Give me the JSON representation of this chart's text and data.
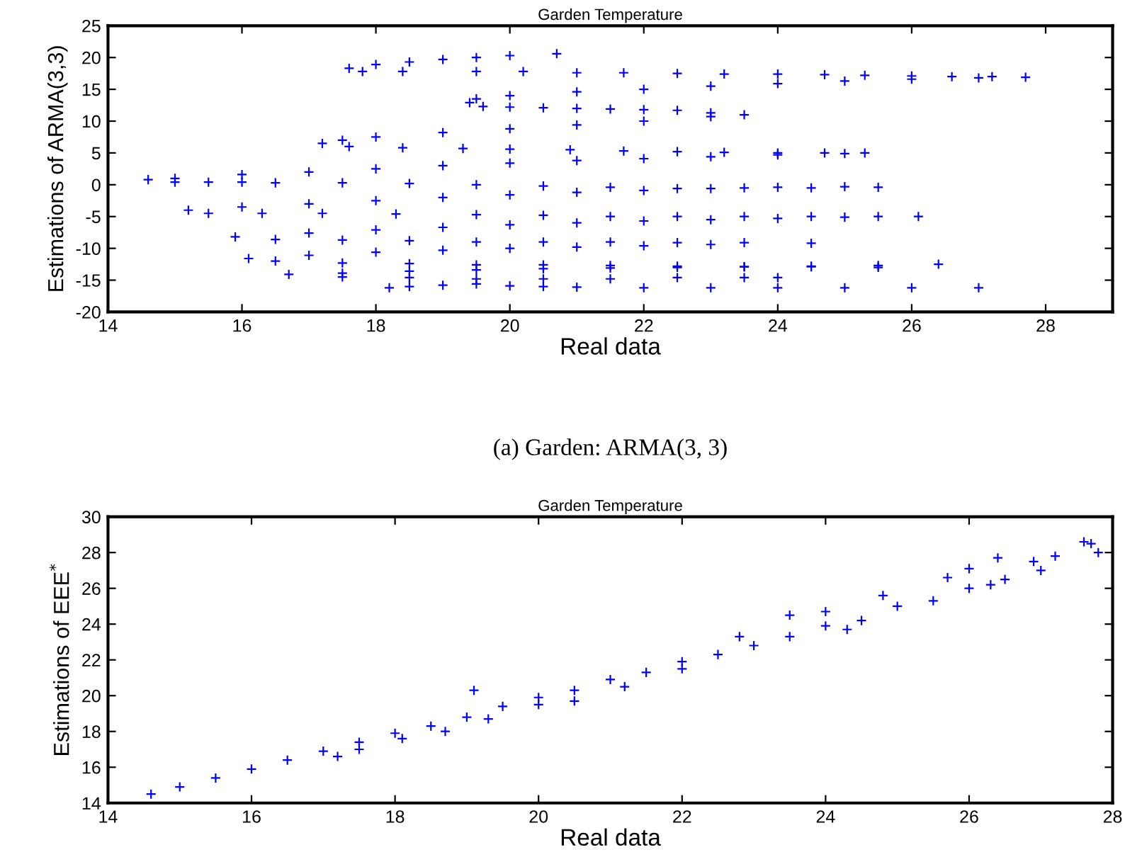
{
  "chart_data": [
    {
      "type": "scatter",
      "title": "Garden Temperature",
      "xlabel": "Real data",
      "ylabel": "Estimations of ARMA(3,3)",
      "annotations": [
        "(a) Garden: ARMA(3, 3)"
      ],
      "marker": "cross",
      "grid": false,
      "xlim": [
        14,
        29
      ],
      "xticks": [
        14,
        16,
        18,
        20,
        22,
        24,
        26,
        28
      ],
      "ylim": [
        -20,
        25
      ],
      "yticks": [
        -20,
        -15,
        -10,
        -5,
        0,
        5,
        10,
        15,
        20,
        25
      ],
      "series": [
        {
          "color": "#0000ff",
          "x": [
            17.6,
            18,
            18.5,
            19,
            19.5,
            20,
            20.7,
            17.8,
            18.4,
            19.5,
            20.2,
            21,
            21.7,
            22.5,
            23.2,
            24,
            24.7,
            25.3,
            26,
            26.6,
            27.2,
            27.7,
            19.4,
            19.5,
            20,
            21,
            22,
            23,
            24,
            25,
            26,
            27,
            19.6,
            20,
            20.5,
            21,
            21.5,
            22,
            22.5,
            23,
            23.5,
            17.2,
            17.5,
            18,
            19,
            20,
            21,
            22,
            23,
            17.6,
            18.4,
            19.3,
            20,
            20.9,
            21.7,
            22.5,
            23.2,
            24,
            24.7,
            25.3,
            14.6,
            15,
            16,
            17,
            18,
            19,
            20,
            21,
            22,
            23,
            24,
            25,
            15,
            15.5,
            16,
            16.5,
            17.5,
            18.5,
            19.5,
            20.5,
            21.5,
            22.5,
            23.5,
            24.5,
            25.5,
            15.2,
            16,
            17,
            18,
            19,
            20,
            21,
            22,
            23,
            24,
            25,
            15.5,
            16.3,
            17.2,
            18.3,
            19.5,
            20.5,
            21.5,
            22.5,
            23.5,
            24.5,
            25.5,
            26.1,
            15.9,
            17,
            18,
            19,
            20,
            21,
            22,
            23,
            24,
            25,
            16.5,
            17.5,
            18.5,
            19.5,
            20.5,
            21.5,
            22.5,
            23.5,
            24.5,
            16.1,
            17,
            18,
            19,
            20,
            21,
            22,
            23,
            16.5,
            17.5,
            18.5,
            19.5,
            20.5,
            21.5,
            22.5,
            23.5,
            24.5,
            25.5,
            26.4,
            16.7,
            17.5,
            18.5,
            19.5,
            20.5,
            21.5,
            22.5,
            23.5,
            24.5,
            25.5,
            17.5,
            18.5,
            19.5,
            20.5,
            21.5,
            22.5,
            23.5,
            24,
            18.2,
            18.5,
            19,
            19.5,
            20,
            20.5,
            21,
            22,
            23,
            24,
            25,
            26,
            27
          ],
          "values": [
            18.3,
            18.9,
            19.3,
            19.7,
            20,
            20.3,
            20.6,
            17.8,
            17.8,
            17.8,
            17.8,
            17.6,
            17.6,
            17.5,
            17.4,
            17.4,
            17.3,
            17.2,
            17.1,
            17,
            17,
            16.9,
            12.9,
            13.5,
            14,
            14.6,
            15,
            15.5,
            15.9,
            16.3,
            16.6,
            16.8,
            12.3,
            12.2,
            12.1,
            12,
            11.9,
            11.8,
            11.7,
            11.3,
            11,
            6.5,
            7,
            7.5,
            8.2,
            8.8,
            9.4,
            10,
            10.7,
            6,
            5.8,
            5.7,
            5.6,
            5.5,
            5.3,
            5.2,
            5.1,
            5,
            5,
            5,
            0.8,
            1,
            1.6,
            2,
            2.5,
            3,
            3.4,
            3.8,
            4.1,
            4.4,
            4.7,
            4.9,
            0.4,
            0.4,
            0.4,
            0.3,
            0.3,
            0.2,
            0,
            -0.2,
            -0.4,
            -0.6,
            -0.5,
            -0.5,
            -0.4,
            -4,
            -3.5,
            -3,
            -2.5,
            -2,
            -1.6,
            -1.2,
            -0.9,
            -0.6,
            -0.4,
            -0.3,
            -4.5,
            -4.5,
            -4.5,
            -4.6,
            -4.7,
            -4.8,
            -5,
            -5,
            -5,
            -5,
            -5,
            -5,
            -8.2,
            -7.6,
            -7.1,
            -6.7,
            -6.3,
            -6,
            -5.7,
            -5.5,
            -5.3,
            -5.1,
            -8.6,
            -8.7,
            -8.8,
            -9,
            -9,
            -9,
            -9.1,
            -9.1,
            -9.2,
            -11.6,
            -11.1,
            -10.6,
            -10.3,
            -10,
            -9.8,
            -9.6,
            -9.4,
            -12,
            -12.3,
            -12.4,
            -12.6,
            -12.6,
            -12.7,
            -12.8,
            -12.9,
            -12.9,
            -13,
            -12.5,
            -14.1,
            -13.9,
            -13.6,
            -13.4,
            -13.2,
            -13.1,
            -13,
            -12.9,
            -12.8,
            -12.7,
            -14.5,
            -14.6,
            -14.8,
            -14.8,
            -14.8,
            -14.6,
            -14.6,
            -14.6,
            -16.2,
            -16,
            -15.8,
            -15.6,
            -15.9,
            -16,
            -16.1,
            -16.2,
            -16.2,
            -16.2,
            -16.2,
            -16.2,
            -16.2
          ]
        }
      ]
    },
    {
      "type": "scatter",
      "title": "Garden Temperature",
      "xlabel": "Real data",
      "ylabel": "Estimations of EEE$^{*}$",
      "marker": "cross",
      "grid": false,
      "xlim": [
        14,
        28
      ],
      "xticks": [
        14,
        16,
        18,
        20,
        22,
        24,
        26,
        28
      ],
      "ylim": [
        14,
        30
      ],
      "yticks": [
        14,
        16,
        18,
        20,
        22,
        24,
        26,
        28,
        30
      ],
      "series": [
        {
          "color": "#0000ff",
          "x": [
            14.6,
            15,
            15.5,
            16,
            16.5,
            17,
            17.2,
            17.5,
            17.5,
            18,
            18.1,
            18.5,
            18.7,
            19,
            19.1,
            19.3,
            19.5,
            20,
            20,
            20.5,
            20.5,
            21,
            21.2,
            21.5,
            22,
            22,
            22.5,
            22.8,
            23,
            23.5,
            23.5,
            24,
            24,
            24.5,
            24.8,
            25,
            25.5,
            25.7,
            26,
            26,
            26.4,
            26.5,
            26.9,
            27.2,
            27.6,
            27.7,
            27.8,
            27,
            24.3,
            26.3
          ],
          "values": [
            14.5,
            14.9,
            15.4,
            15.9,
            16.4,
            16.9,
            16.6,
            17.4,
            17,
            17.9,
            17.6,
            18.3,
            18,
            18.8,
            20.3,
            18.7,
            19.4,
            19.9,
            19.5,
            20.3,
            19.7,
            20.9,
            20.5,
            21.3,
            21.9,
            21.5,
            22.3,
            23.3,
            22.8,
            23.3,
            24.5,
            23.9,
            24.7,
            24.2,
            25.6,
            25,
            25.3,
            26.6,
            26,
            27.1,
            27.7,
            26.5,
            27.5,
            27.8,
            28.6,
            28.5,
            28,
            27,
            23.7,
            26.2
          ]
        }
      ]
    }
  ]
}
